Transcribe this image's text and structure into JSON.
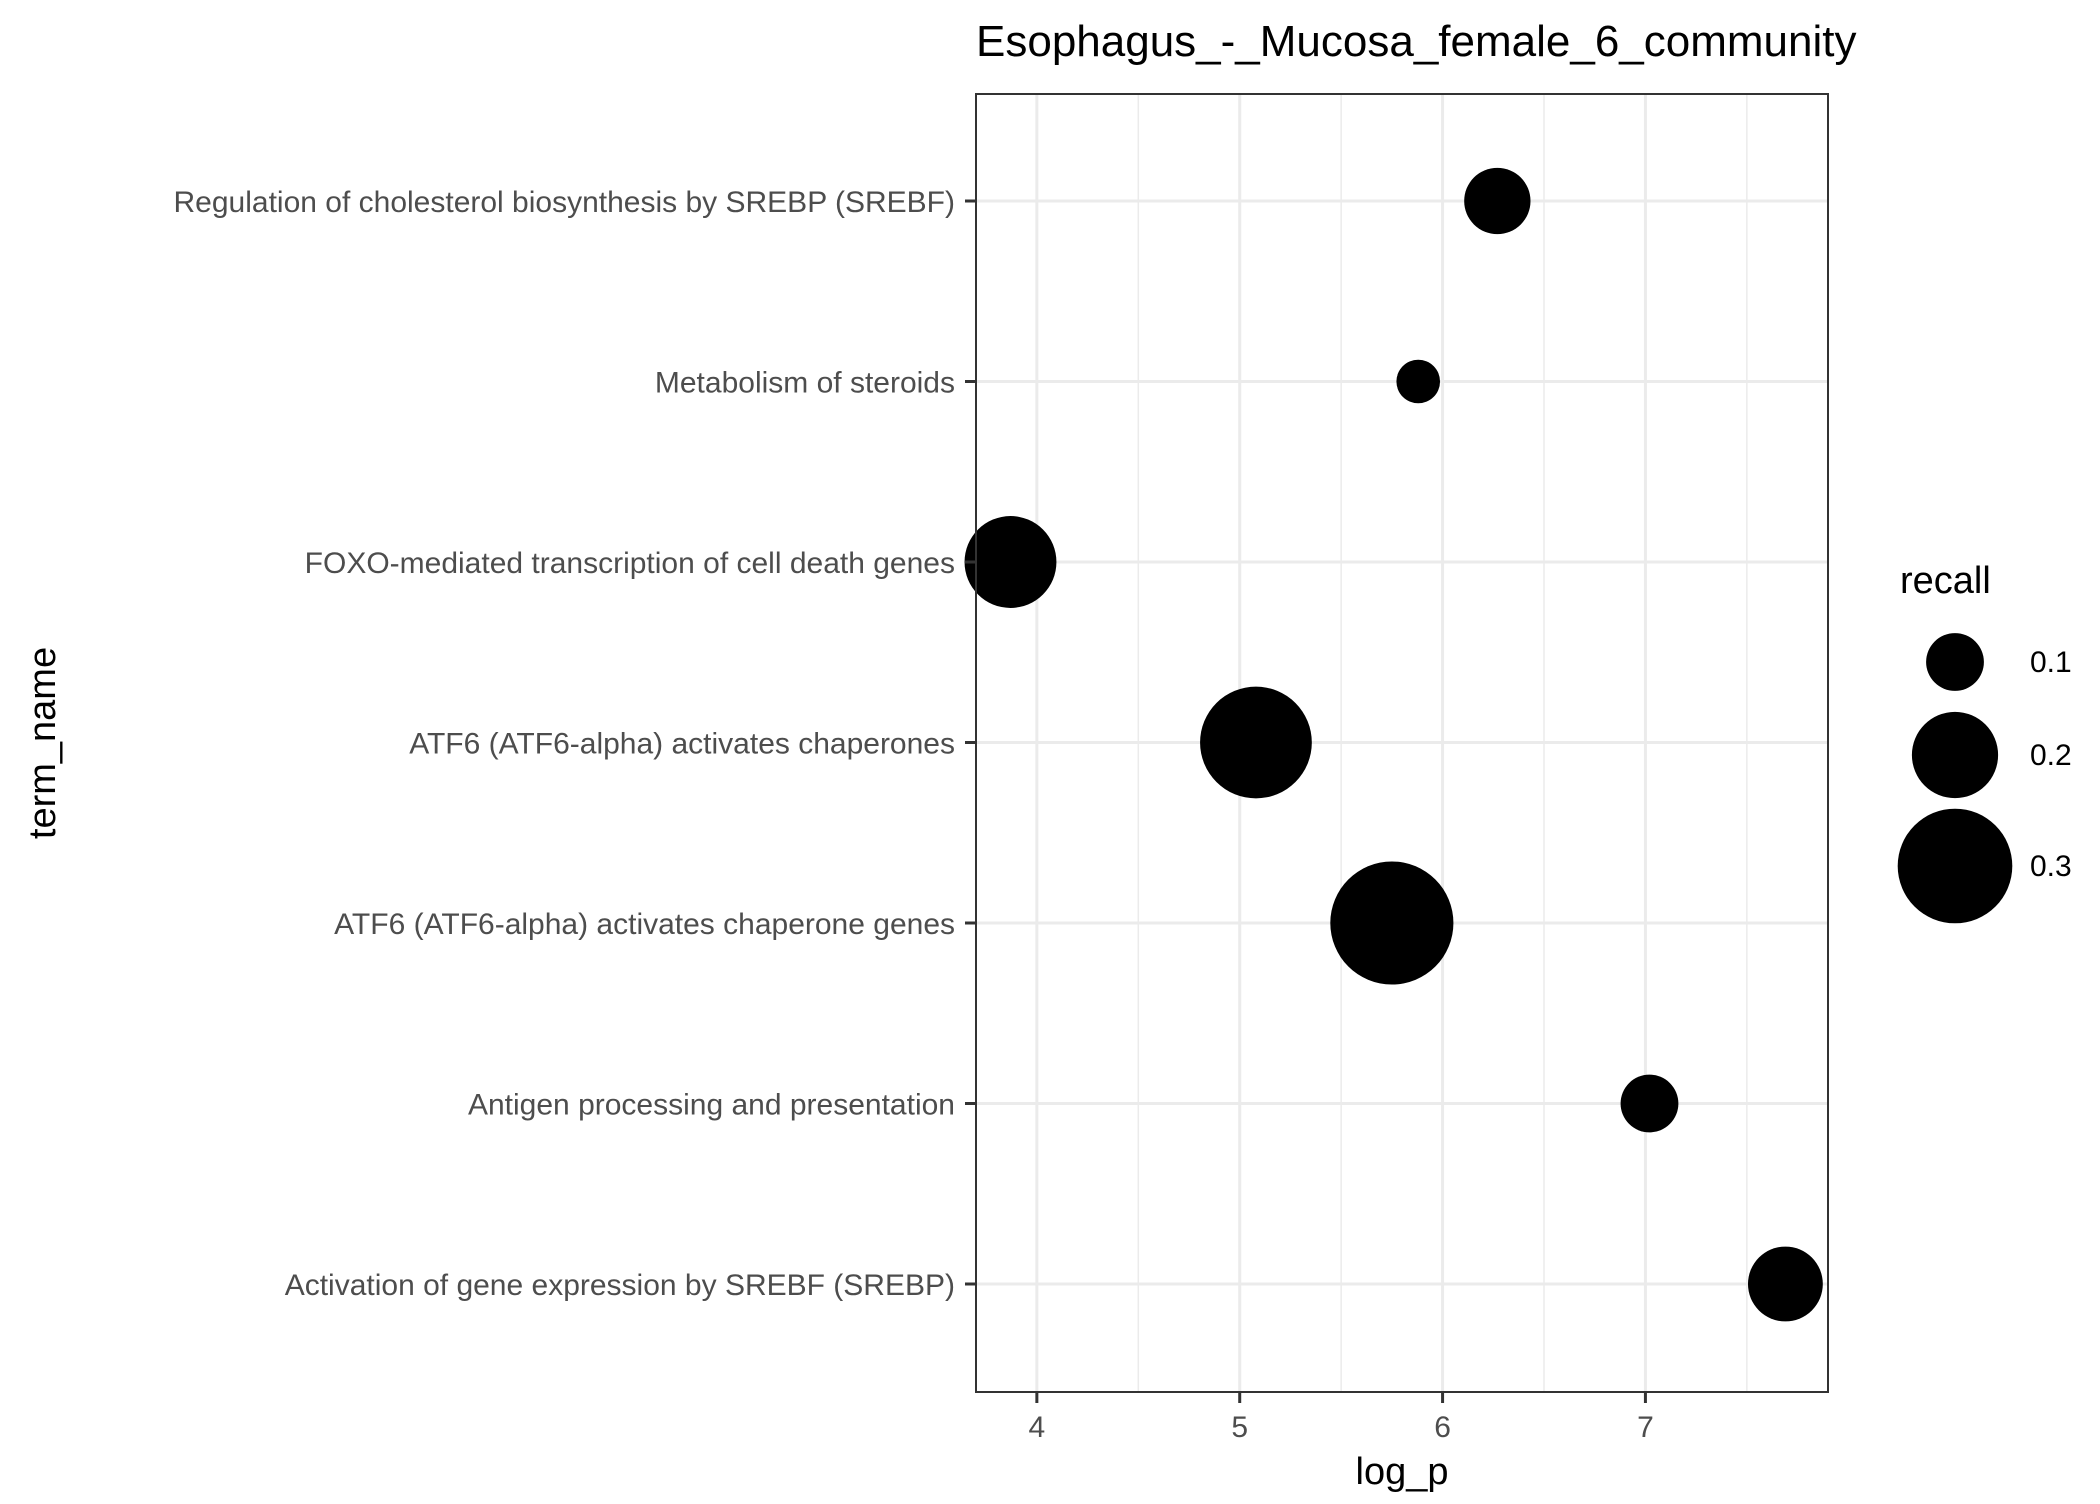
{
  "chart_data": {
    "type": "scatter",
    "title": "Esophagus_-_Mucosa_female_6_community",
    "xlabel": "log_p",
    "ylabel": "term_name",
    "xlim": [
      3.7,
      7.9
    ],
    "x_ticks": [
      4,
      5,
      6,
      7
    ],
    "grid": true,
    "legend": {
      "title": "recall",
      "position": "right",
      "entries": [
        {
          "label": "0.1",
          "value": 0.1
        },
        {
          "label": "0.2",
          "value": 0.2
        },
        {
          "label": "0.3",
          "value": 0.3
        }
      ]
    },
    "categories": [
      "Regulation of cholesterol biosynthesis by SREBP (SREBF)",
      "Metabolism of steroids",
      "FOXO-mediated transcription of cell death genes",
      "ATF6 (ATF6-alpha) activates chaperones",
      "ATF6 (ATF6-alpha) activates chaperone genes",
      "Antigen processing and presentation",
      "Activation of gene expression by SREBF (SREBP)"
    ],
    "points": [
      {
        "term": "Regulation of cholesterol biosynthesis by SREBP (SREBF)",
        "log_p": 6.27,
        "recall": 0.13
      },
      {
        "term": "Metabolism of steroids",
        "log_p": 5.88,
        "recall": 0.05
      },
      {
        "term": "FOXO-mediated transcription of cell death genes",
        "log_p": 3.87,
        "recall": 0.22
      },
      {
        "term": "ATF6 (ATF6-alpha) activates chaperones",
        "log_p": 5.08,
        "recall": 0.29
      },
      {
        "term": "ATF6 (ATF6-alpha) activates chaperone genes",
        "log_p": 5.75,
        "recall": 0.33
      },
      {
        "term": "Antigen processing and presentation",
        "log_p": 7.02,
        "recall": 0.1
      },
      {
        "term": "Activation of gene expression by SREBF (SREBP)",
        "log_p": 7.69,
        "recall": 0.16
      }
    ],
    "colors": {
      "point": "#000000",
      "grid": "#ebebeb",
      "panel_border": "#333333",
      "axis_text": "#4d4d4d",
      "title": "#000000"
    }
  }
}
